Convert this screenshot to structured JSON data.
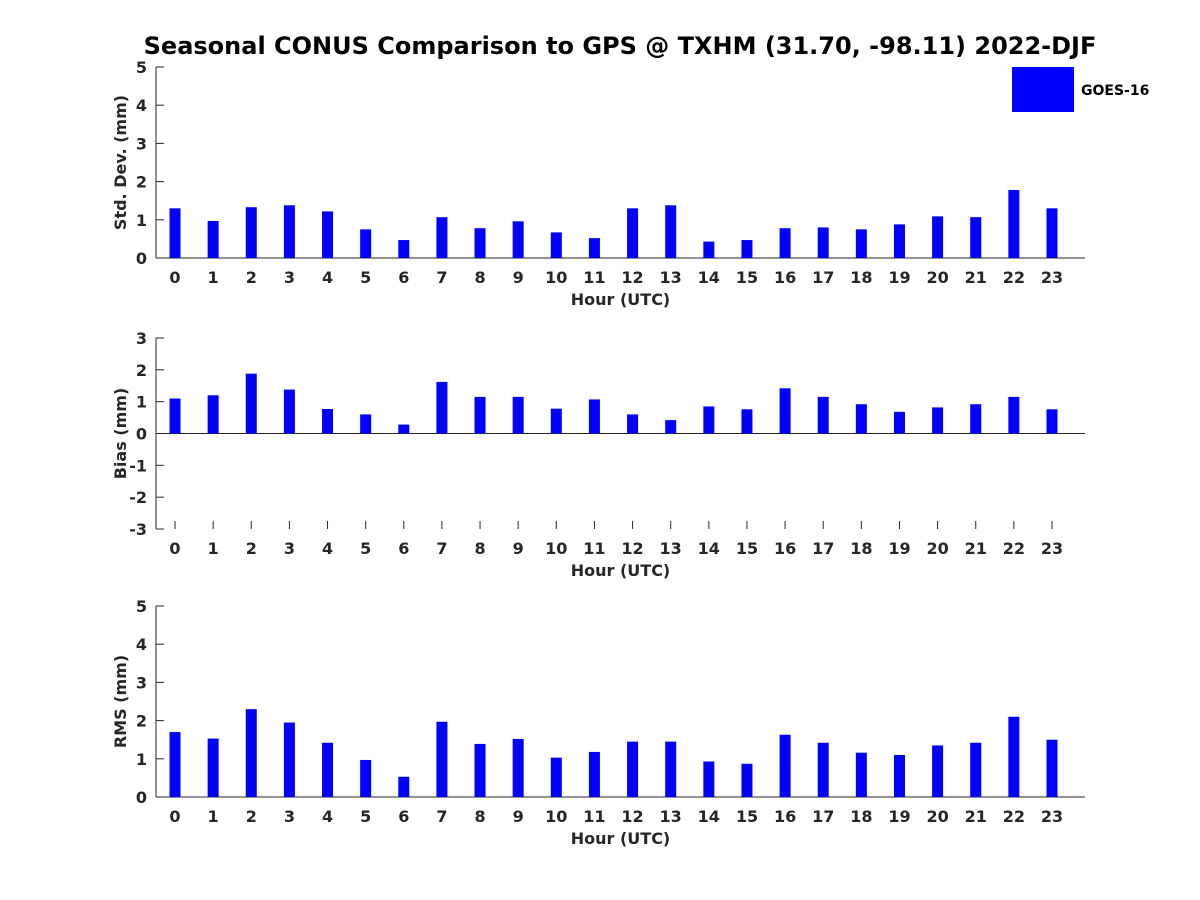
{
  "title": "Seasonal CONUS Comparison to GPS @ TXHM (31.70, -98.11) 2022-DJF",
  "legend": {
    "label": "GOES-16",
    "color": "#0000ff"
  },
  "chart_data": [
    {
      "type": "bar",
      "xlabel": "Hour (UTC)",
      "ylabel": "Std. Dev. (mm)",
      "ylim": [
        0,
        5
      ],
      "yticks": [
        0,
        1,
        2,
        3,
        4,
        5
      ],
      "categories": [
        "0",
        "1",
        "2",
        "3",
        "4",
        "5",
        "6",
        "7",
        "8",
        "9",
        "10",
        "11",
        "12",
        "13",
        "14",
        "15",
        "16",
        "17",
        "18",
        "19",
        "20",
        "21",
        "22",
        "23"
      ],
      "series": [
        {
          "name": "GOES-16",
          "color": "#0000ff",
          "values": [
            1.3,
            0.97,
            1.33,
            1.38,
            1.22,
            0.75,
            0.47,
            1.07,
            0.78,
            0.96,
            0.67,
            0.52,
            1.3,
            1.38,
            0.43,
            0.47,
            0.78,
            0.8,
            0.75,
            0.88,
            1.09,
            1.07,
            1.78,
            1.3
          ]
        }
      ]
    },
    {
      "type": "bar",
      "xlabel": "Hour (UTC)",
      "ylabel": "Bias (mm)",
      "ylim": [
        -3,
        3
      ],
      "yticks": [
        -3,
        -2,
        -1,
        0,
        1,
        2,
        3
      ],
      "categories": [
        "0",
        "1",
        "2",
        "3",
        "4",
        "5",
        "6",
        "7",
        "8",
        "9",
        "10",
        "11",
        "12",
        "13",
        "14",
        "15",
        "16",
        "17",
        "18",
        "19",
        "20",
        "21",
        "22",
        "23"
      ],
      "series": [
        {
          "name": "GOES-16",
          "color": "#0000ff",
          "values": [
            1.1,
            1.2,
            1.88,
            1.38,
            0.77,
            0.6,
            0.28,
            1.62,
            1.15,
            1.15,
            0.78,
            1.07,
            0.6,
            0.42,
            0.85,
            0.76,
            1.42,
            1.15,
            0.92,
            0.68,
            0.82,
            0.92,
            1.15,
            0.76
          ]
        }
      ]
    },
    {
      "type": "bar",
      "xlabel": "Hour (UTC)",
      "ylabel": "RMS (mm)",
      "ylim": [
        0,
        5
      ],
      "yticks": [
        0,
        1,
        2,
        3,
        4,
        5
      ],
      "categories": [
        "0",
        "1",
        "2",
        "3",
        "4",
        "5",
        "6",
        "7",
        "8",
        "9",
        "10",
        "11",
        "12",
        "13",
        "14",
        "15",
        "16",
        "17",
        "18",
        "19",
        "20",
        "21",
        "22",
        "23"
      ],
      "series": [
        {
          "name": "GOES-16",
          "color": "#0000ff",
          "values": [
            1.7,
            1.53,
            2.3,
            1.95,
            1.42,
            0.97,
            0.53,
            1.97,
            1.39,
            1.52,
            1.03,
            1.18,
            1.45,
            1.45,
            0.93,
            0.87,
            1.63,
            1.42,
            1.16,
            1.1,
            1.35,
            1.42,
            2.1,
            1.5
          ]
        }
      ]
    }
  ]
}
